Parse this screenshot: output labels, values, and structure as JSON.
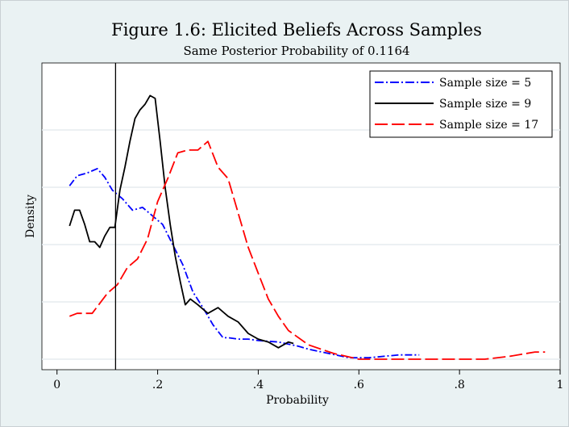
{
  "chart_data": {
    "type": "line",
    "title": "Figure 1.6: Elicited Beliefs Across Samples",
    "subtitle": "Same Posterior Probability of 0.1164",
    "xlabel": "Probability",
    "ylabel": "Density",
    "xlim": [
      -0.03,
      1.0
    ],
    "ylim": [
      0,
      1.0
    ],
    "x_ticks": [
      0,
      0.2,
      0.4,
      0.6,
      0.8,
      1.0
    ],
    "x_tick_labels": [
      "0",
      ".2",
      ".4",
      ".6",
      ".8",
      "1"
    ],
    "y_tick_labels_shown": false,
    "grid": "horizontal",
    "legend_position": "top-right",
    "reference_line": {
      "x": 0.1164,
      "color": "#000000"
    },
    "colors": {
      "background_outer": "#eaf2f3",
      "plot_background": "#ffffff",
      "grid": "#e6ecef"
    },
    "series": [
      {
        "name": "Sample size = 5",
        "color": "#0000ff",
        "dash": "dash-dot",
        "x": [
          0.025,
          0.04,
          0.06,
          0.08,
          0.095,
          0.11,
          0.13,
          0.15,
          0.17,
          0.19,
          0.21,
          0.23,
          0.25,
          0.27,
          0.29,
          0.31,
          0.33,
          0.34,
          0.36,
          0.38,
          0.4,
          0.44,
          0.48,
          0.5,
          0.54,
          0.58,
          0.62,
          0.65,
          0.68,
          0.71,
          0.72
        ],
        "y": [
          0.605,
          0.64,
          0.65,
          0.665,
          0.635,
          0.59,
          0.56,
          0.52,
          0.53,
          0.5,
          0.47,
          0.4,
          0.33,
          0.235,
          0.18,
          0.12,
          0.075,
          0.075,
          0.07,
          0.07,
          0.065,
          0.06,
          0.045,
          0.035,
          0.02,
          0.005,
          0.005,
          0.01,
          0.015,
          0.015,
          0.015
        ]
      },
      {
        "name": "Sample size = 9",
        "color": "#000000",
        "dash": "solid",
        "x": [
          0.025,
          0.035,
          0.045,
          0.055,
          0.065,
          0.075,
          0.085,
          0.095,
          0.105,
          0.115,
          0.125,
          0.135,
          0.145,
          0.155,
          0.165,
          0.175,
          0.185,
          0.195,
          0.205,
          0.215,
          0.225,
          0.235,
          0.245,
          0.255,
          0.265,
          0.28,
          0.3,
          0.32,
          0.34,
          0.36,
          0.38,
          0.4,
          0.42,
          0.44,
          0.46,
          0.47
        ],
        "y": [
          0.465,
          0.52,
          0.52,
          0.47,
          0.41,
          0.41,
          0.39,
          0.43,
          0.46,
          0.46,
          0.59,
          0.67,
          0.76,
          0.84,
          0.87,
          0.89,
          0.92,
          0.91,
          0.76,
          0.6,
          0.47,
          0.36,
          0.27,
          0.19,
          0.21,
          0.19,
          0.16,
          0.18,
          0.15,
          0.13,
          0.09,
          0.07,
          0.06,
          0.04,
          0.06,
          0.055
        ]
      },
      {
        "name": "Sample size = 17",
        "color": "#ff0000",
        "dash": "long-dash",
        "x": [
          0.025,
          0.04,
          0.07,
          0.1,
          0.12,
          0.14,
          0.16,
          0.18,
          0.2,
          0.22,
          0.24,
          0.26,
          0.28,
          0.3,
          0.32,
          0.34,
          0.36,
          0.38,
          0.4,
          0.42,
          0.44,
          0.46,
          0.5,
          0.55,
          0.6,
          0.65,
          0.7,
          0.75,
          0.8,
          0.85,
          0.9,
          0.95,
          0.97
        ],
        "y": [
          0.15,
          0.16,
          0.16,
          0.23,
          0.26,
          0.32,
          0.35,
          0.42,
          0.55,
          0.63,
          0.72,
          0.73,
          0.73,
          0.76,
          0.67,
          0.63,
          0.51,
          0.39,
          0.3,
          0.21,
          0.15,
          0.1,
          0.05,
          0.02,
          0.0,
          0.0,
          0.0,
          0.0,
          0.0,
          0.0,
          0.01,
          0.025,
          0.025
        ]
      }
    ]
  }
}
